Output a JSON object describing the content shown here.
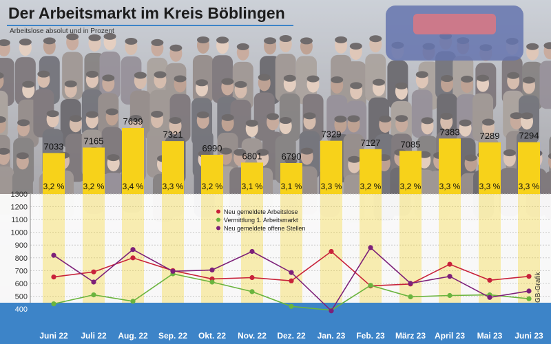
{
  "page": {
    "title": "Der Arbeitsmarkt im Kreis Böblingen",
    "subtitle": "Arbeitslose absolut und in Prozent",
    "credit": "GB-Grafik"
  },
  "colors": {
    "bar": "#f7d21a",
    "axis_band": "#3d84c8",
    "title_rule": "#3d84c8",
    "new_unemployed": "#c8223a",
    "placement": "#6ab43e",
    "new_vacancies": "#7d2079"
  },
  "chart_data": [
    {
      "type": "bar",
      "title": "Arbeitslose absolut und in Prozent",
      "categories": [
        "Juni 22",
        "Juli 22",
        "Aug. 22",
        "Sep. 22",
        "Okt. 22",
        "Nov. 22",
        "Dez. 22",
        "Jan. 23",
        "Feb. 23",
        "März 23",
        "April 23",
        "Mai 23",
        "Juni 23"
      ],
      "values": [
        7033,
        7165,
        7639,
        7321,
        6990,
        6801,
        6790,
        7329,
        7127,
        7085,
        7383,
        7289,
        7294
      ],
      "percent_labels": [
        "3,2 %",
        "3,2 %",
        "3,4 %",
        "3,3 %",
        "3,2 %",
        "3,1 %",
        "3,1 %",
        "3,3 %",
        "3,2 %",
        "3,2 %",
        "3,3 %",
        "3,3 %",
        "3,3 %"
      ]
    },
    {
      "type": "line",
      "categories": [
        "Juni 22",
        "Juli 22",
        "Aug. 22",
        "Sep. 22",
        "Okt. 22",
        "Nov. 22",
        "Dez. 22",
        "Jan. 23",
        "Feb. 23",
        "März 23",
        "April 23",
        "Mai 23",
        "Juni 23"
      ],
      "ylim": [
        400,
        1300
      ],
      "yticks": [
        "400",
        "500",
        "600",
        "700",
        "800",
        "900",
        "1000",
        "1100",
        "1200",
        "1300"
      ],
      "legend_position": "top-center",
      "series": [
        {
          "name": "Neu gemeldete Arbeitslose",
          "values": [
            650,
            690,
            800,
            700,
            635,
            645,
            620,
            850,
            580,
            595,
            750,
            625,
            655
          ]
        },
        {
          "name": "Vermittlung 1. Arbeitsmarkt",
          "values": [
            440,
            510,
            460,
            675,
            610,
            535,
            420,
            390,
            585,
            495,
            505,
            510,
            480
          ]
        },
        {
          "name": "Neu gemeldete offene Stellen",
          "values": [
            820,
            610,
            865,
            695,
            705,
            850,
            685,
            385,
            880,
            600,
            655,
            490,
            540
          ]
        }
      ]
    }
  ]
}
